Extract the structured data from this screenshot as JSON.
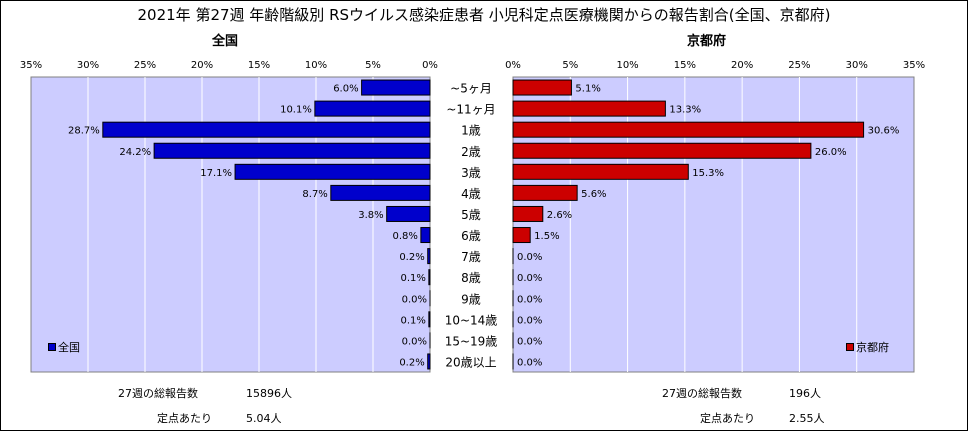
{
  "title": "2021年 第27週 年齢階級別 RSウイルス感染症患者 小児科定点医療機関からの報告割合(全国、京都府)",
  "left_subtitle": "全国",
  "right_subtitle": "京都府",
  "colors": {
    "national": "#0000cc",
    "kyoto": "#cc0000",
    "plot_bg": "#ccccff"
  },
  "chart_data": [
    {
      "type": "bar",
      "series": [
        {
          "name": "全国",
          "values": [
            6.0,
            10.1,
            28.7,
            24.2,
            17.1,
            8.7,
            3.8,
            0.8,
            0.2,
            0.1,
            0.0,
            0.1,
            0.0,
            0.2
          ]
        }
      ],
      "categories": [
        "~5ヶ月",
        "~11ヶ月",
        "1歳",
        "2歳",
        "3歳",
        "4歳",
        "5歳",
        "6歳",
        "7歳",
        "8歳",
        "9歳",
        "10~14歳",
        "15~19歳",
        "20歳以上"
      ],
      "value_labels": [
        "6.0%",
        "10.1%",
        "28.7%",
        "24.2%",
        "17.1%",
        "8.7%",
        "3.8%",
        "0.8%",
        "0.2%",
        "0.1%",
        "0.0%",
        "0.1%",
        "0.0%",
        "0.2%"
      ],
      "xlim": [
        35,
        0
      ],
      "x_ticks": [
        "35%",
        "30%",
        "25%",
        "20%",
        "15%",
        "10%",
        "5%",
        "0%"
      ],
      "grid": true,
      "legend": "bottom-left"
    },
    {
      "type": "bar",
      "series": [
        {
          "name": "京都府",
          "values": [
            5.1,
            13.3,
            30.6,
            26.0,
            15.3,
            5.6,
            2.6,
            1.5,
            0.0,
            0.0,
            0.0,
            0.0,
            0.0,
            0.0
          ]
        }
      ],
      "categories": [
        "~5ヶ月",
        "~11ヶ月",
        "1歳",
        "2歳",
        "3歳",
        "4歳",
        "5歳",
        "6歳",
        "7歳",
        "8歳",
        "9歳",
        "10~14歳",
        "15~19歳",
        "20歳以上"
      ],
      "value_labels": [
        "5.1%",
        "13.3%",
        "30.6%",
        "26.0%",
        "15.3%",
        "5.6%",
        "2.6%",
        "1.5%",
        "0.0%",
        "0.0%",
        "0.0%",
        "0.0%",
        "0.0%",
        "0.0%"
      ],
      "xlim": [
        0,
        35
      ],
      "x_ticks": [
        "0%",
        "5%",
        "10%",
        "15%",
        "20%",
        "25%",
        "30%",
        "35%"
      ],
      "grid": true,
      "legend": "bottom-right"
    }
  ],
  "national_info": {
    "total_label": "27週の総報告数",
    "total_value": "15896人",
    "per_label": "定点あたり",
    "per_value": "5.04人"
  },
  "kyoto_info": {
    "total_label": "27週の総報告数",
    "total_value": "196人",
    "per_label": "定点あたり",
    "per_value": "2.55人"
  }
}
